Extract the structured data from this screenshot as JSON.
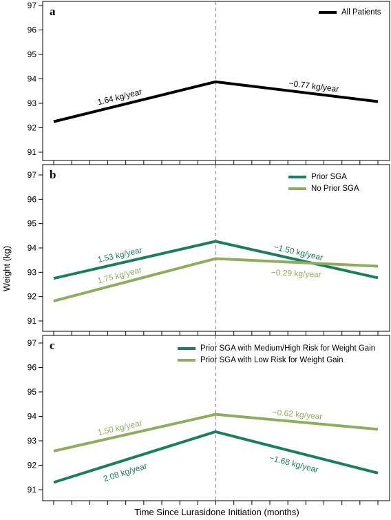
{
  "chart_data": {
    "type": "line",
    "ylabel": "Weight (kg)",
    "xlabel": "Time Since Lurasidone Initiation (months)",
    "ylim": [
      91,
      97
    ],
    "yticks": [
      "91",
      "92",
      "93",
      "94",
      "95",
      "96",
      "97"
    ],
    "x_tick_count": 19,
    "x": [
      0,
      1,
      2
    ],
    "panels": [
      {
        "letter": "a",
        "series": [
          {
            "name": "All Patients",
            "color": "#000000",
            "values": [
              92.25,
              93.88,
              93.07
            ],
            "rate_labels": [
              "1.64 kg/year",
              "−0.77 kg/year"
            ]
          }
        ]
      },
      {
        "letter": "b",
        "series": [
          {
            "name": "Prior SGA",
            "color": "#1a7f5a",
            "values": [
              92.75,
              94.27,
              92.77
            ],
            "rate_labels": [
              "1.53 kg/year",
              "−1.50 kg/year"
            ]
          },
          {
            "name": "No Prior SGA",
            "color": "#8fad5e",
            "values": [
              91.82,
              93.56,
              93.25
            ],
            "rate_labels": [
              "1.75 kg/year",
              "−0.29 kg/year"
            ]
          }
        ]
      },
      {
        "letter": "c",
        "series": [
          {
            "name": "Prior SGA with Medium/High Risk for Weight Gain",
            "color": "#1a7f5a",
            "values": [
              91.3,
              93.37,
              91.68
            ],
            "rate_labels": [
              "2.08 kg/year",
              "−1.68 kg/year"
            ]
          },
          {
            "name": "Prior SGA with Low Risk for Weight Gain",
            "color": "#8fad5e",
            "values": [
              92.58,
              94.08,
              93.47
            ],
            "rate_labels": [
              "1.50 kg/year",
              "−0.62 kg/year"
            ]
          }
        ]
      }
    ]
  }
}
